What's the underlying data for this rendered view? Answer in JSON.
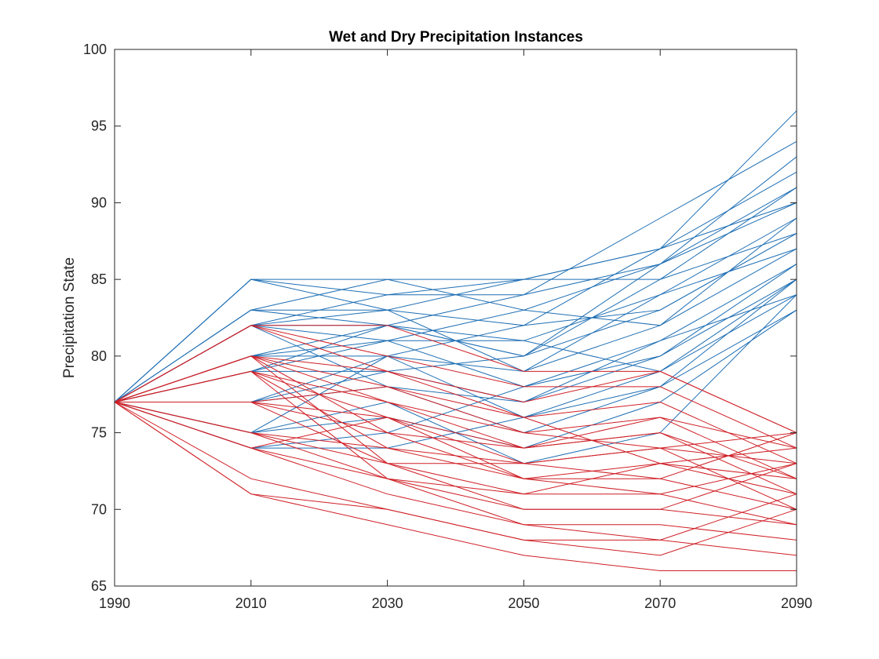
{
  "chart_data": {
    "type": "line",
    "title": "Wet and Dry Precipitation Instances",
    "xlabel": "",
    "ylabel": "Precipitation State",
    "x": [
      1990,
      2010,
      2030,
      2050,
      2070,
      2090
    ],
    "xlim": [
      1990,
      2090
    ],
    "ylim": [
      65,
      100
    ],
    "xticks": [
      "1990",
      "2010",
      "2030",
      "2050",
      "2070",
      "2090"
    ],
    "yticks": [
      "65",
      "70",
      "75",
      "80",
      "85",
      "90",
      "95",
      "100"
    ],
    "grid": false,
    "legend": "none",
    "colors": {
      "wet": "#1f6fb4",
      "dry": "#cf1f26"
    },
    "series": [
      {
        "group": "wet",
        "values": [
          77,
          85,
          85,
          85,
          87,
          96
        ]
      },
      {
        "group": "wet",
        "values": [
          77,
          85,
          84,
          84,
          89,
          94
        ]
      },
      {
        "group": "wet",
        "values": [
          77,
          83,
          85,
          83,
          86,
          93
        ]
      },
      {
        "group": "wet",
        "values": [
          77,
          83,
          83,
          82,
          87,
          92
        ]
      },
      {
        "group": "wet",
        "values": [
          77,
          82,
          84,
          85,
          85,
          91
        ]
      },
      {
        "group": "wet",
        "values": [
          77,
          82,
          82,
          84,
          86,
          90
        ]
      },
      {
        "group": "wet",
        "values": [
          77,
          82,
          81,
          81,
          84,
          89
        ]
      },
      {
        "group": "wet",
        "values": [
          77,
          80,
          82,
          80,
          83,
          88
        ]
      },
      {
        "group": "wet",
        "values": [
          77,
          80,
          80,
          79,
          82,
          87
        ]
      },
      {
        "group": "wet",
        "values": [
          77,
          79,
          81,
          78,
          81,
          86
        ]
      },
      {
        "group": "wet",
        "values": [
          77,
          79,
          79,
          77,
          80,
          85
        ]
      },
      {
        "group": "wet",
        "values": [
          77,
          77,
          80,
          76,
          79,
          84
        ]
      },
      {
        "group": "wet",
        "values": [
          77,
          77,
          78,
          75,
          78,
          83
        ]
      },
      {
        "group": "wet",
        "values": [
          77,
          75,
          76,
          74,
          77,
          83
        ]
      },
      {
        "group": "wet",
        "values": [
          77,
          75,
          77,
          73,
          75,
          84
        ]
      },
      {
        "group": "wet",
        "values": [
          77,
          74,
          74,
          76,
          78,
          85
        ]
      },
      {
        "group": "wet",
        "values": [
          77,
          74,
          75,
          78,
          80,
          86
        ]
      },
      {
        "group": "wet",
        "values": [
          77,
          83,
          82,
          80,
          85,
          88
        ]
      },
      {
        "group": "wet",
        "values": [
          77,
          85,
          83,
          79,
          84,
          87
        ]
      },
      {
        "group": "wet",
        "values": [
          77,
          82,
          83,
          85,
          87,
          90
        ]
      },
      {
        "group": "wet",
        "values": [
          77,
          80,
          81,
          83,
          82,
          89
        ]
      },
      {
        "group": "wet",
        "values": [
          77,
          79,
          82,
          81,
          79,
          85
        ]
      },
      {
        "group": "wet",
        "values": [
          77,
          77,
          79,
          80,
          86,
          91
        ]
      },
      {
        "group": "wet",
        "values": [
          77,
          75,
          80,
          82,
          83,
          88
        ]
      },
      {
        "group": "wet",
        "values": [
          77,
          82,
          78,
          77,
          81,
          84
        ]
      },
      {
        "group": "dry",
        "values": [
          77,
          82,
          82,
          79,
          79,
          75
        ]
      },
      {
        "group": "dry",
        "values": [
          77,
          82,
          80,
          78,
          78,
          74
        ]
      },
      {
        "group": "dry",
        "values": [
          77,
          80,
          79,
          77,
          79,
          75
        ]
      },
      {
        "group": "dry",
        "values": [
          77,
          80,
          78,
          76,
          77,
          73
        ]
      },
      {
        "group": "dry",
        "values": [
          77,
          79,
          77,
          75,
          76,
          74
        ]
      },
      {
        "group": "dry",
        "values": [
          77,
          79,
          76,
          74,
          75,
          72
        ]
      },
      {
        "group": "dry",
        "values": [
          77,
          77,
          76,
          73,
          74,
          73
        ]
      },
      {
        "group": "dry",
        "values": [
          77,
          77,
          75,
          72,
          73,
          71
        ]
      },
      {
        "group": "dry",
        "values": [
          77,
          75,
          74,
          72,
          72,
          70
        ]
      },
      {
        "group": "dry",
        "values": [
          77,
          75,
          73,
          71,
          71,
          69
        ]
      },
      {
        "group": "dry",
        "values": [
          77,
          74,
          72,
          70,
          70,
          69
        ]
      },
      {
        "group": "dry",
        "values": [
          77,
          74,
          71,
          69,
          69,
          68
        ]
      },
      {
        "group": "dry",
        "values": [
          77,
          72,
          70,
          68,
          68,
          67
        ]
      },
      {
        "group": "dry",
        "values": [
          77,
          71,
          69,
          67,
          66,
          66
        ]
      },
      {
        "group": "dry",
        "values": [
          77,
          71,
          70,
          68,
          67,
          70
        ]
      },
      {
        "group": "dry",
        "values": [
          77,
          80,
          77,
          74,
          75,
          71
        ]
      },
      {
        "group": "dry",
        "values": [
          77,
          79,
          74,
          73,
          72,
          75
        ]
      },
      {
        "group": "dry",
        "values": [
          77,
          82,
          79,
          76,
          73,
          72
        ]
      },
      {
        "group": "dry",
        "values": [
          77,
          80,
          73,
          70,
          70,
          73
        ]
      },
      {
        "group": "dry",
        "values": [
          77,
          77,
          78,
          75,
          74,
          70
        ]
      },
      {
        "group": "dry",
        "values": [
          77,
          75,
          72,
          71,
          73,
          74
        ]
      },
      {
        "group": "dry",
        "values": [
          77,
          74,
          76,
          72,
          71,
          73
        ]
      },
      {
        "group": "dry",
        "values": [
          77,
          79,
          72,
          69,
          68,
          71
        ]
      },
      {
        "group": "dry",
        "values": [
          77,
          80,
          75,
          74,
          76,
          72
        ]
      },
      {
        "group": "dry",
        "values": [
          77,
          77,
          73,
          73,
          74,
          75
        ]
      }
    ]
  }
}
